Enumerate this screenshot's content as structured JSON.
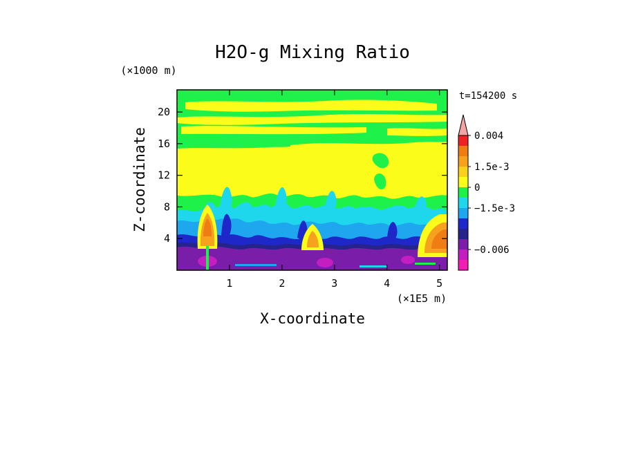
{
  "chart_data": {
    "type": "heatmap",
    "title": "H2O-g Mixing Ratio",
    "xlabel": "X-coordinate",
    "ylabel": "Z-coordinate",
    "x_unit": "(×1E5 m)",
    "y_unit": "(×1000 m)",
    "time_label": "t=154200 s",
    "xlim": [
      0,
      5.15
    ],
    "ylim": [
      0,
      22.8
    ],
    "x_ticks": [
      1,
      2,
      3,
      4,
      5
    ],
    "y_ticks": [
      4,
      8,
      12,
      16,
      20
    ],
    "grid": false,
    "colorbar": {
      "orientation": "vertical",
      "placement": "right",
      "extend": "both",
      "levels_top_to_bottom": [
        {
          "color": "#f4a3a3"
        },
        {
          "color": "#ee2222"
        },
        {
          "color": "#f07c14"
        },
        {
          "color": "#f7a21e"
        },
        {
          "color": "#fbd21a"
        },
        {
          "color": "#fcfc1a"
        },
        {
          "color": "#1ef14a"
        },
        {
          "color": "#1ed7ec"
        },
        {
          "color": "#1ea6ee"
        },
        {
          "color": "#1e28c8"
        },
        {
          "color": "#26248a"
        },
        {
          "color": "#7a1eaa"
        },
        {
          "color": "#c31ebf"
        },
        {
          "color": "#f21eb4"
        }
      ],
      "labels": [
        {
          "text": "0.004",
          "value": 0.004
        },
        {
          "text": "1.5e-3",
          "value": 0.0015
        },
        {
          "text": "0",
          "value": 0
        },
        {
          "text": "−1.5e-3",
          "value": -0.0015
        },
        {
          "text": "−0.006",
          "value": -0.006
        }
      ]
    },
    "field": {
      "bands_by_height": [
        {
          "z_from": 0,
          "z_to": 3,
          "level": "#7a1eaa"
        },
        {
          "z_from": 3,
          "z_to": 5,
          "level": "#1e28c8"
        },
        {
          "z_from": 5,
          "z_to": 7.5,
          "level": "#1ea6ee"
        },
        {
          "z_from": 7.5,
          "z_to": 9,
          "level": "#1ef14a"
        },
        {
          "z_from": 9,
          "z_to": 16,
          "level": "#fcfc1a"
        },
        {
          "z_from": 16,
          "z_to": 22.8,
          "level": "#1ef14a"
        }
      ],
      "moist_plumes": [
        {
          "x": 0.6,
          "z_top": 7.5,
          "peak_level": "#f07c14"
        },
        {
          "x": 2.75,
          "z_top": 6.0,
          "peak_level": "#f7a21e"
        },
        {
          "x": 5.05,
          "z_top": 6.5,
          "peak_level": "#f07c14"
        }
      ]
    }
  }
}
